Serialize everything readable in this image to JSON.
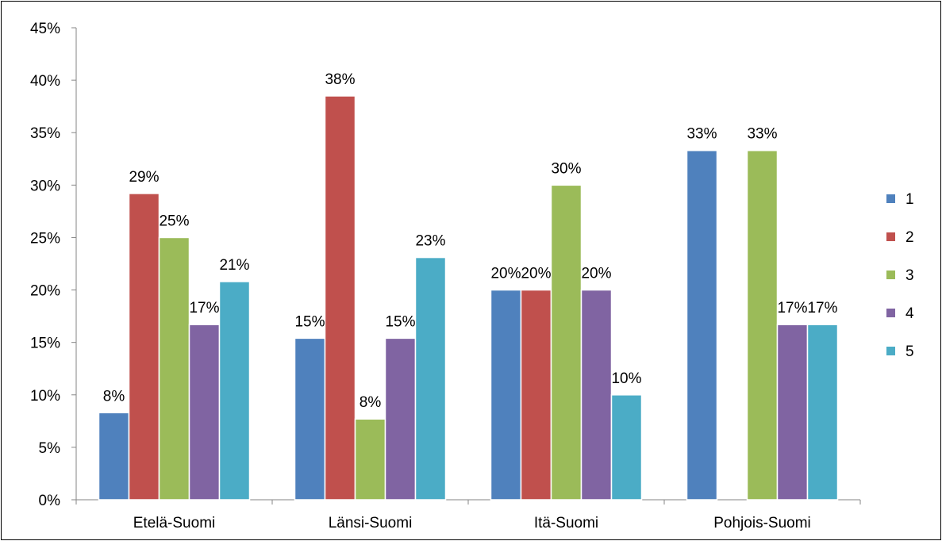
{
  "chart_data": {
    "type": "bar",
    "title": "",
    "xlabel": "",
    "ylabel": "",
    "categories": [
      "Etelä-Suomi",
      "Länsi-Suomi",
      "Itä-Suomi",
      "Pohjois-Suomi"
    ],
    "ylim": [
      0,
      45
    ],
    "yticks": [
      0,
      5,
      10,
      15,
      20,
      25,
      30,
      35,
      40,
      45
    ],
    "ytick_labels": [
      "0%",
      "5%",
      "10%",
      "15%",
      "20%",
      "25%",
      "30%",
      "35%",
      "40%",
      "45%"
    ],
    "grid": false,
    "legend_position": "right",
    "series": [
      {
        "name": "1",
        "color": "#4F81BD",
        "values": [
          8.3,
          15.4,
          20.0,
          33.3
        ],
        "labels": [
          "8%",
          "15%",
          "20%",
          "33%"
        ]
      },
      {
        "name": "2",
        "color": "#C0504D",
        "values": [
          29.2,
          38.5,
          20.0,
          0
        ],
        "labels": [
          "29%",
          "38%",
          "20%",
          ""
        ]
      },
      {
        "name": "3",
        "color": "#9BBB59",
        "values": [
          25.0,
          7.7,
          30.0,
          33.3
        ],
        "labels": [
          "25%",
          "8%",
          "30%",
          "33%"
        ]
      },
      {
        "name": "4",
        "color": "#8064A2",
        "values": [
          16.7,
          15.4,
          20.0,
          16.7
        ],
        "labels": [
          "17%",
          "15%",
          "20%",
          "17%"
        ]
      },
      {
        "name": "5",
        "color": "#4BACC6",
        "values": [
          20.8,
          23.1,
          10.0,
          16.7
        ],
        "labels": [
          "21%",
          "23%",
          "10%",
          "17%"
        ]
      }
    ]
  }
}
